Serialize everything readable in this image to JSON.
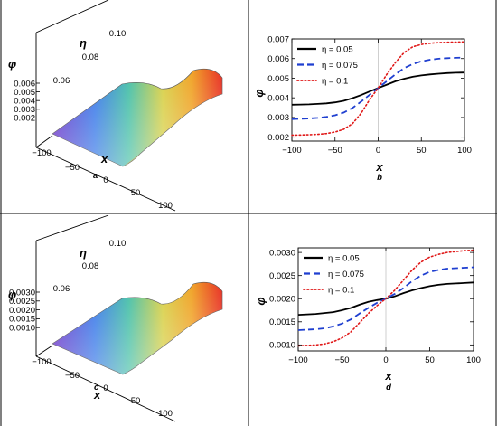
{
  "chart_data": [
    {
      "id": "a",
      "type": "surface",
      "panel_tag": "a",
      "xlabel": "x",
      "ylabel": "η",
      "zlabel": "φ",
      "x_ticks": [
        "−100",
        "−50",
        "0",
        "50",
        "100"
      ],
      "y_ticks": [
        "0.06",
        "0.08",
        "0.10"
      ],
      "z_ticks": [
        "0.002",
        "0.003",
        "0.004",
        "0.005",
        "0.006"
      ],
      "xlim": [
        -100,
        100
      ],
      "ylim": [
        0.05,
        0.1
      ],
      "zlim": [
        0.002,
        0.006
      ],
      "colormap": [
        "#7b2fc0",
        "#2f6fe0",
        "#38c0b0",
        "#c8d040",
        "#f0a020",
        "#e83020"
      ]
    },
    {
      "id": "b",
      "type": "line",
      "panel_tag": "b",
      "xlabel": "x",
      "ylabel": "φ",
      "xlim": [
        -100,
        100
      ],
      "ylim": [
        0.0018,
        0.007
      ],
      "x_ticks": [
        -100,
        -50,
        0,
        50,
        100
      ],
      "x_tick_labels": [
        "−100",
        "−50",
        "0",
        "50",
        "100"
      ],
      "y_ticks": [
        0.002,
        0.003,
        0.004,
        0.005,
        0.006,
        0.007
      ],
      "y_tick_labels": [
        "0.002",
        "0.003",
        "0.004",
        "0.005",
        "0.006",
        "0.007"
      ],
      "x": [
        -100,
        -90,
        -80,
        -70,
        -60,
        -50,
        -40,
        -30,
        -20,
        -10,
        0,
        10,
        20,
        30,
        40,
        50,
        60,
        70,
        80,
        90,
        100
      ],
      "series": [
        {
          "name": "η = 0.05",
          "color": "#000000",
          "style": "solid",
          "values": [
            0.00365,
            0.00366,
            0.00367,
            0.00369,
            0.00372,
            0.00377,
            0.00385,
            0.00398,
            0.00414,
            0.00432,
            0.0045,
            0.00467,
            0.00484,
            0.00497,
            0.00507,
            0.00514,
            0.00519,
            0.00523,
            0.00526,
            0.00528,
            0.00529
          ]
        },
        {
          "name": "η = 0.075",
          "color": "#1f3fd0",
          "style": "dashed",
          "values": [
            0.00292,
            0.00293,
            0.00295,
            0.00298,
            0.00303,
            0.00311,
            0.00325,
            0.00348,
            0.0038,
            0.00415,
            0.0045,
            0.00485,
            0.0052,
            0.00551,
            0.00572,
            0.00586,
            0.00594,
            0.00599,
            0.00602,
            0.00604,
            0.00605
          ]
        },
        {
          "name": "η = 0.1",
          "color": "#e01818",
          "style": "dotted",
          "values": [
            0.0021,
            0.00211,
            0.00212,
            0.00214,
            0.00218,
            0.00226,
            0.0024,
            0.00268,
            0.0032,
            0.0039,
            0.0045,
            0.0052,
            0.0058,
            0.0063,
            0.0066,
            0.00672,
            0.00678,
            0.00681,
            0.00683,
            0.00684,
            0.00685
          ]
        }
      ],
      "vline_x": 0,
      "legend_position": "top-left"
    },
    {
      "id": "c",
      "type": "surface",
      "panel_tag": "c",
      "xlabel": "x",
      "ylabel": "η",
      "zlabel": "φ",
      "x_ticks": [
        "−100",
        "−50",
        "0",
        "50",
        "100"
      ],
      "y_ticks": [
        "0.06",
        "0.08",
        "0.10"
      ],
      "z_ticks": [
        "0.0010",
        "0.0015",
        "0.0020",
        "0.0025",
        "0.0030"
      ],
      "xlim": [
        -100,
        100
      ],
      "ylim": [
        0.05,
        0.1
      ],
      "zlim": [
        0.001,
        0.003
      ],
      "colormap": [
        "#7b2fc0",
        "#2f6fe0",
        "#38c0b0",
        "#c8d040",
        "#f0a020",
        "#e83020"
      ]
    },
    {
      "id": "d",
      "type": "line",
      "panel_tag": "d",
      "xlabel": "x",
      "ylabel": "φ",
      "xlim": [
        -100,
        100
      ],
      "ylim": [
        0.00087,
        0.0031
      ],
      "x_ticks": [
        -100,
        -50,
        0,
        50,
        100
      ],
      "x_tick_labels": [
        "−100",
        "−50",
        "0",
        "50",
        "100"
      ],
      "y_ticks": [
        0.001,
        0.0015,
        0.002,
        0.0025,
        0.003
      ],
      "y_tick_labels": [
        "0.0010",
        "0.0015",
        "0.0020",
        "0.0025",
        "0.0030"
      ],
      "x": [
        -100,
        -90,
        -80,
        -70,
        -60,
        -50,
        -40,
        -30,
        -20,
        -10,
        0,
        10,
        20,
        30,
        40,
        50,
        60,
        70,
        80,
        90,
        100
      ],
      "series": [
        {
          "name": "η = 0.05",
          "color": "#000000",
          "style": "solid",
          "values": [
            0.00165,
            0.00166,
            0.00167,
            0.00169,
            0.00171,
            0.00175,
            0.0018,
            0.00187,
            0.00193,
            0.00197,
            0.002,
            0.00205,
            0.00212,
            0.00218,
            0.00223,
            0.00227,
            0.0023,
            0.00232,
            0.00233,
            0.00234,
            0.00235
          ]
        },
        {
          "name": "η = 0.075",
          "color": "#1f3fd0",
          "style": "dashed",
          "values": [
            0.00132,
            0.00133,
            0.00134,
            0.00136,
            0.0014,
            0.00146,
            0.00155,
            0.00168,
            0.0018,
            0.00191,
            0.002,
            0.0021,
            0.00223,
            0.00238,
            0.0025,
            0.00258,
            0.00262,
            0.00265,
            0.00266,
            0.00267,
            0.00268
          ]
        },
        {
          "name": "η = 0.1",
          "color": "#e01818",
          "style": "dotted",
          "values": [
            0.00098,
            0.00099,
            0.001,
            0.00102,
            0.00107,
            0.00115,
            0.00128,
            0.00148,
            0.00168,
            0.00185,
            0.002,
            0.00218,
            0.0024,
            0.00262,
            0.00279,
            0.0029,
            0.00296,
            0.003,
            0.00302,
            0.00304,
            0.00305
          ]
        }
      ],
      "vline_x": 0,
      "legend_position": "top-left"
    }
  ]
}
